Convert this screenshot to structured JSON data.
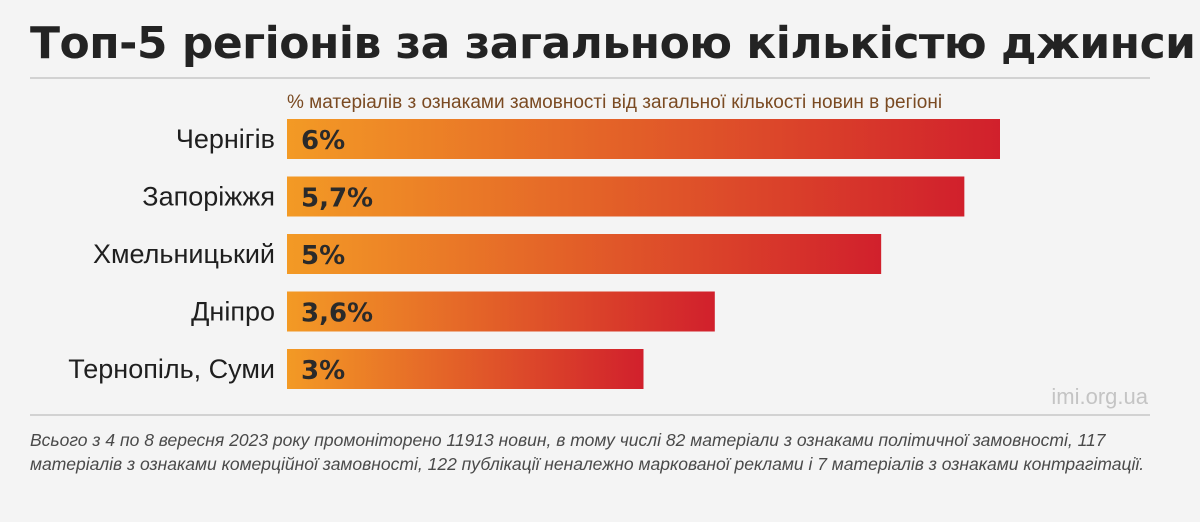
{
  "title": "Топ-5 регіонів за загальною кількістю джинси",
  "source": "imi.org.ua",
  "note": "Всього з 4 по 8 вересня 2023 року промоніторено 11913 новин, в тому числі 82 матеріали з ознаками політичної замовності, 117 матеріалів з ознаками комерційної замовності, 122 публікації неналежно маркованої реклами і 7 матеріалів з ознаками контрагітації.",
  "colors": {
    "bar_start": "#f39a25",
    "bar_end": "#d1202c",
    "label_text": "#2a2a2a"
  },
  "chart_data": {
    "type": "bar",
    "orientation": "horizontal",
    "title": "Топ-5 регіонів за загальною кількістю джинси",
    "subtitle": "% матеріалів з ознаками замовності від загальної кількості новин в регіоні",
    "categories": [
      "Чернігів",
      "Запоріжжя",
      "Хмельницький",
      "Дніпро",
      "Тернопіль, Суми"
    ],
    "values": [
      6,
      5.7,
      5,
      3.6,
      3
    ],
    "value_labels": [
      "6%",
      "5,7%",
      "5%",
      "3,6%",
      "3%"
    ],
    "unit": "%",
    "xlim": [
      0,
      6
    ],
    "grid": false,
    "legend": "none"
  }
}
